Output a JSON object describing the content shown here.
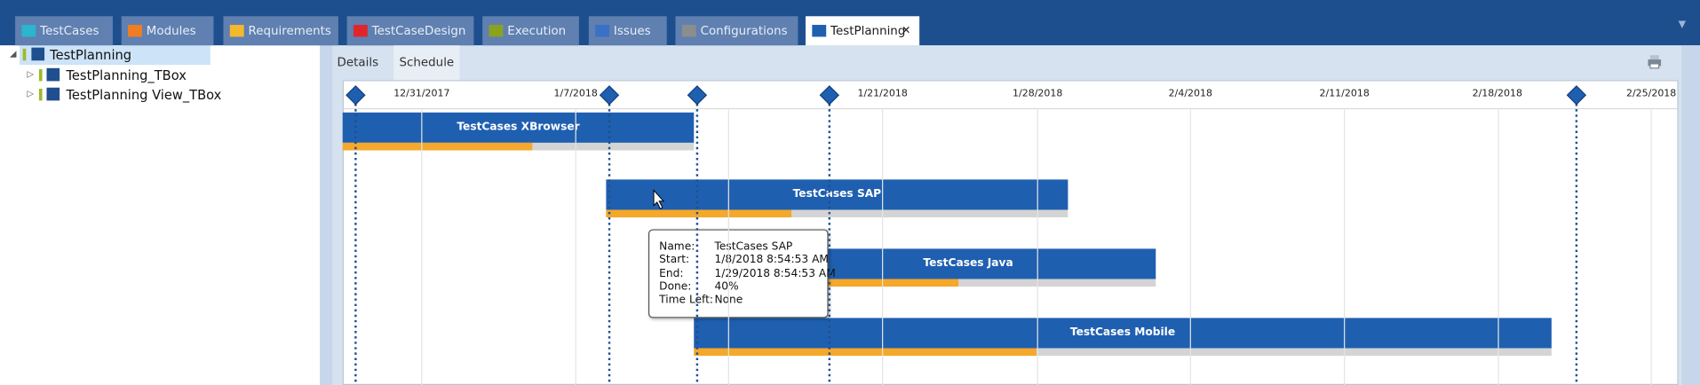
{
  "tabs": [
    "TestCases",
    "Modules",
    "Requirements",
    "TestCaseDesign",
    "Execution",
    "Issues",
    "Configurations",
    "TestPlanning"
  ],
  "tree": {
    "root": "TestPlanning",
    "children": [
      "TestPlanning_TBox",
      "TestPlanning View_TBox"
    ]
  },
  "subtabs": [
    "Details",
    "Schedule"
  ],
  "dates": [
    "12/31/2017",
    "1/7/2018",
    "1/21/2018",
    "1/28/2018",
    "2/4/2018",
    "2/11/2018",
    "2/18/2018",
    "2/25/2018"
  ],
  "tasks": [
    "TestCases XBrowser",
    "TestCases SAP",
    "TestCases Java",
    "TestCases Mobile"
  ],
  "tooltip": [
    {
      "label": "Name:",
      "value": "TestCases SAP"
    },
    {
      "label": "Start:",
      "value": "1/8/2018 8:54:53 AM"
    },
    {
      "label": "End:",
      "value": "1/29/2018 8:54:53 AM"
    },
    {
      "label": "Done:",
      "value": "40%"
    },
    {
      "label": "Time Left:",
      "value": "None"
    }
  ]
}
